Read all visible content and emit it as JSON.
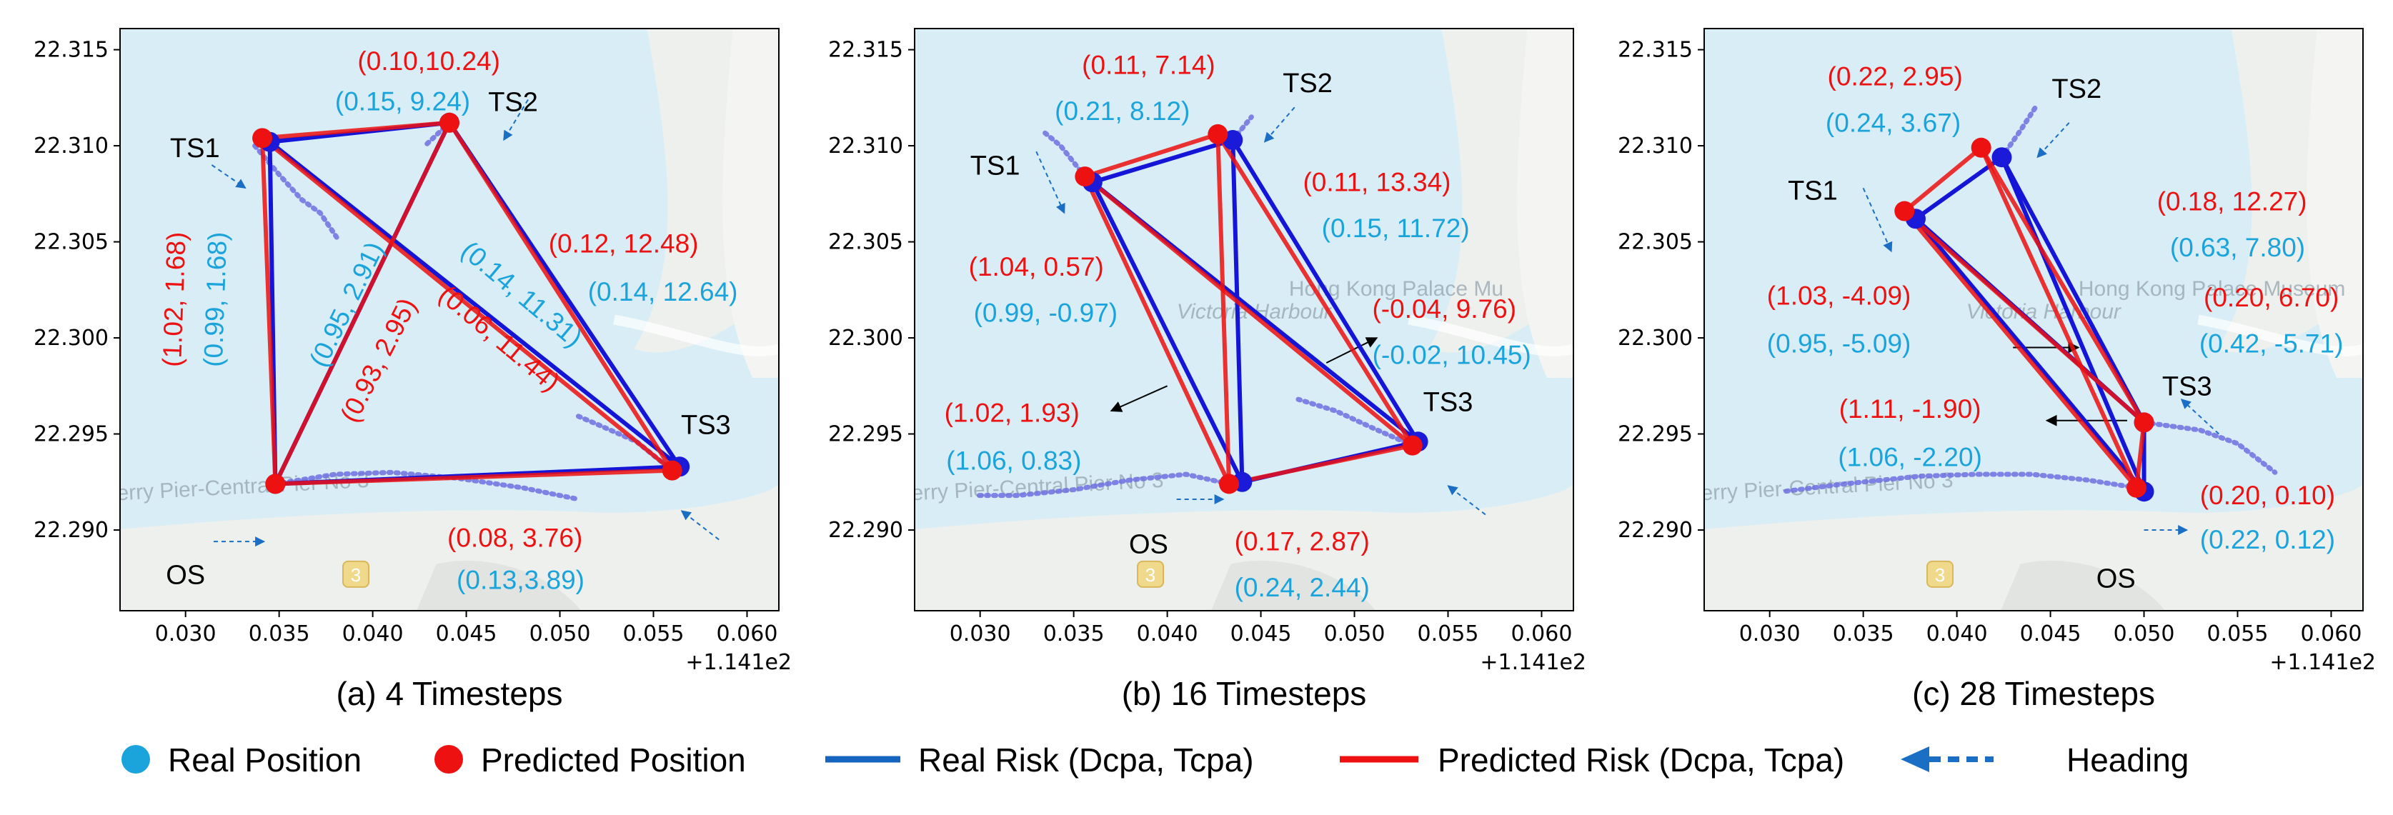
{
  "chart_data": [
    {
      "type": "scatter",
      "caption": "(a) 4 Timesteps",
      "x_offset_label": "+1.141e2",
      "x_ticks": [
        "0.030",
        "0.035",
        "0.040",
        "0.045",
        "0.050",
        "0.055",
        "0.060"
      ],
      "y_ticks": [
        "22.290",
        "22.295",
        "22.300",
        "22.305",
        "22.310",
        "22.315"
      ],
      "xlim": [
        0.0265,
        0.0617
      ],
      "ylim": [
        22.2858,
        22.3161
      ],
      "map_labels": [
        "erry Pier-Central Pier No 3",
        "3"
      ],
      "ships": [
        {
          "name": "TS1",
          "label": "TS1",
          "real": [
            0.0345,
            22.3102
          ],
          "pred": [
            0.0341,
            22.3104
          ],
          "heading_from": [
            0.0314,
            22.309
          ],
          "heading_to": [
            0.0332,
            22.3078
          ],
          "track": [
            [
              0.0337,
              22.31
            ],
            [
              0.035,
              22.3085
            ],
            [
              0.0362,
              22.3072
            ],
            [
              0.0372,
              22.3065
            ],
            [
              0.0381,
              22.3052
            ]
          ],
          "label_at": [
            0.0305,
            22.3094
          ]
        },
        {
          "name": "TS2",
          "label": "TS2",
          "real": [
            0.0441,
            22.3112
          ],
          "pred": [
            0.0441,
            22.3112
          ],
          "heading_from": [
            0.0483,
            22.3124
          ],
          "heading_to": [
            0.047,
            22.3103
          ],
          "track": [
            [
              0.0441,
              22.3112
            ],
            [
              0.0429,
              22.3101
            ]
          ],
          "label_at": [
            0.0475,
            22.3118
          ]
        },
        {
          "name": "TS3",
          "label": "TS3",
          "real": [
            0.0564,
            22.2933
          ],
          "pred": [
            0.056,
            22.2931
          ],
          "heading_from": [
            0.0585,
            22.2895
          ],
          "heading_to": [
            0.0565,
            22.291
          ],
          "track": [
            [
              0.056,
              22.2931
            ],
            [
              0.0541,
              22.2946
            ],
            [
              0.052,
              22.2955
            ],
            [
              0.0508,
              22.296
            ]
          ],
          "label_at": [
            0.0578,
            22.295
          ]
        },
        {
          "name": "OS",
          "label": "OS",
          "real": [
            0.0348,
            22.2924
          ],
          "pred": [
            0.0348,
            22.2924
          ],
          "heading_from": [
            0.0315,
            22.2894
          ],
          "heading_to": [
            0.0342,
            22.2894
          ],
          "track": [
            [
              0.0348,
              22.2924
            ],
            [
              0.038,
              22.2929
            ],
            [
              0.041,
              22.293
            ],
            [
              0.0445,
              22.2927
            ],
            [
              0.048,
              22.2922
            ],
            [
              0.051,
              22.2916
            ]
          ],
          "label_at": [
            0.03,
            22.2872
          ]
        }
      ],
      "pairs": [
        [
          "TS1",
          "TS2"
        ],
        [
          "TS1",
          "OS"
        ],
        [
          "TS1",
          "TS3"
        ],
        [
          "TS2",
          "OS"
        ],
        [
          "TS2",
          "TS3"
        ],
        [
          "OS",
          "TS3"
        ]
      ],
      "annotations": [
        {
          "text": "(0.10,10.24)",
          "color": "#ee1111",
          "at": [
            0.043,
            22.3143
          ],
          "rotate": 0
        },
        {
          "text": "(0.15, 9.24)",
          "color": "#1ba4dc",
          "at": [
            0.0416,
            22.3122
          ],
          "rotate": 0
        },
        {
          "text": "(0.12, 12.48)",
          "color": "#ee1111",
          "at": [
            0.0534,
            22.3048
          ],
          "rotate": 0
        },
        {
          "text": "(0.14, 12.64)",
          "color": "#1ba4dc",
          "at": [
            0.0555,
            22.3023
          ],
          "rotate": 0
        },
        {
          "text": "(1.02, 1.68)",
          "color": "#ee1111",
          "at": [
            0.0295,
            22.302
          ],
          "rotate": -88
        },
        {
          "text": "(0.99, 1.68)",
          "color": "#1ba4dc",
          "at": [
            0.0317,
            22.302
          ],
          "rotate": -88
        },
        {
          "text": "(0.95, 2.91)",
          "color": "#1ba4dc",
          "at": [
            0.0387,
            22.3017
          ],
          "rotate": -64
        },
        {
          "text": "(0.93, 2.95)",
          "color": "#ee1111",
          "at": [
            0.0404,
            22.2988
          ],
          "rotate": -63
        },
        {
          "text": "(0.14, 11.31)",
          "color": "#1ba4dc",
          "at": [
            0.0479,
            22.3022
          ],
          "rotate": 40
        },
        {
          "text": "(0.06, 11.44)",
          "color": "#ee1111",
          "at": [
            0.0467,
            22.2999
          ],
          "rotate": 40
        },
        {
          "text": "(0.08, 3.76)",
          "color": "#ee1111",
          "at": [
            0.0476,
            22.2895
          ],
          "rotate": 0
        },
        {
          "text": "(0.13,3.89)",
          "color": "#1ba4dc",
          "at": [
            0.0479,
            22.2873
          ],
          "rotate": 0
        }
      ]
    },
    {
      "type": "scatter",
      "caption": "(b) 16 Timesteps",
      "x_offset_label": "+1.141e2",
      "x_ticks": [
        "0.030",
        "0.035",
        "0.040",
        "0.045",
        "0.050",
        "0.055",
        "0.060"
      ],
      "y_ticks": [
        "22.290",
        "22.295",
        "22.300",
        "22.305",
        "22.310",
        "22.315"
      ],
      "xlim": [
        0.0265,
        0.0617
      ],
      "ylim": [
        22.2858,
        22.3161
      ],
      "map_labels": [
        "erry Pier-Central Pier No 3",
        "Victoria Harbour",
        "Hong Kong Palace Mu",
        "3"
      ],
      "ships": [
        {
          "name": "TS1",
          "label": "TS1",
          "real": [
            0.036,
            22.3081
          ],
          "pred": [
            0.0356,
            22.3084
          ],
          "heading_from": [
            0.033,
            22.3097
          ],
          "heading_to": [
            0.0345,
            22.3065
          ],
          "track": [
            [
              0.0356,
              22.3084
            ],
            [
              0.0343,
              22.31
            ],
            [
              0.0333,
              22.3108
            ]
          ],
          "label_at": [
            0.0308,
            22.3085
          ]
        },
        {
          "name": "TS2",
          "label": "TS2",
          "real": [
            0.0435,
            22.3103
          ],
          "pred": [
            0.0427,
            22.3106
          ],
          "heading_from": [
            0.0468,
            22.312
          ],
          "heading_to": [
            0.0452,
            22.3102
          ],
          "track": [
            [
              0.0435,
              22.3103
            ],
            [
              0.0445,
              22.3115
            ]
          ],
          "label_at": [
            0.0475,
            22.3128
          ]
        },
        {
          "name": "TS3",
          "label": "TS3",
          "real": [
            0.0534,
            22.2946
          ],
          "pred": [
            0.0531,
            22.2944
          ],
          "heading_from": [
            0.057,
            22.2908
          ],
          "heading_to": [
            0.055,
            22.2923
          ],
          "track": [
            [
              0.0531,
              22.2944
            ],
            [
              0.051,
              22.2953
            ],
            [
              0.049,
              22.2962
            ],
            [
              0.047,
              22.2968
            ]
          ],
          "label_at": [
            0.055,
            22.2962
          ]
        },
        {
          "name": "OS",
          "label": "OS",
          "real": [
            0.044,
            22.2925
          ],
          "pred": [
            0.0433,
            22.2924
          ],
          "heading_from": [
            0.0405,
            22.2916
          ],
          "heading_to": [
            0.043,
            22.2916
          ],
          "track": [
            [
              0.0433,
              22.2924
            ],
            [
              0.041,
              22.2929
            ],
            [
              0.038,
              22.2926
            ],
            [
              0.035,
              22.2921
            ],
            [
              0.032,
              22.2918
            ],
            [
              0.0299,
              22.2918
            ]
          ],
          "label_at": [
            0.039,
            22.2888
          ]
        }
      ],
      "pairs": [
        [
          "TS1",
          "TS2"
        ],
        [
          "TS1",
          "OS"
        ],
        [
          "TS1",
          "TS3"
        ],
        [
          "TS2",
          "OS"
        ],
        [
          "TS2",
          "TS3"
        ],
        [
          "OS",
          "TS3"
        ]
      ],
      "extra_arrows": [
        {
          "from": [
            0.04,
            22.2975
          ],
          "to": [
            0.037,
            22.2962
          ]
        },
        {
          "from": [
            0.0485,
            22.2987
          ],
          "to": [
            0.0512,
            22.3
          ]
        }
      ],
      "annotations": [
        {
          "text": "(0.11, 7.14)",
          "color": "#ee1111",
          "at": [
            0.039,
            22.3141
          ],
          "rotate": 0
        },
        {
          "text": "(0.21, 8.12)",
          "color": "#1ba4dc",
          "at": [
            0.0376,
            22.3117
          ],
          "rotate": 0
        },
        {
          "text": "(0.11, 13.34)",
          "color": "#ee1111",
          "at": [
            0.0512,
            22.308
          ],
          "rotate": 0
        },
        {
          "text": "(0.15, 11.72)",
          "color": "#1ba4dc",
          "at": [
            0.0522,
            22.3056
          ],
          "rotate": 0
        },
        {
          "text": "(1.04, 0.57)",
          "color": "#ee1111",
          "at": [
            0.033,
            22.3036
          ],
          "rotate": 0
        },
        {
          "text": "(0.99, -0.97)",
          "color": "#1ba4dc",
          "at": [
            0.0335,
            22.3012
          ],
          "rotate": 0
        },
        {
          "text": "(-0.04, 9.76)",
          "color": "#ee1111",
          "at": [
            0.0548,
            22.3014
          ],
          "rotate": 0
        },
        {
          "text": "(-0.02, 10.45)",
          "color": "#1ba4dc",
          "at": [
            0.0552,
            22.299
          ],
          "rotate": 0
        },
        {
          "text": "(1.02, 1.93)",
          "color": "#ee1111",
          "at": [
            0.0317,
            22.296
          ],
          "rotate": 0
        },
        {
          "text": "(1.06, 0.83)",
          "color": "#1ba4dc",
          "at": [
            0.0318,
            22.2935
          ],
          "rotate": 0
        },
        {
          "text": "(0.17, 2.87)",
          "color": "#ee1111",
          "at": [
            0.0472,
            22.2893
          ],
          "rotate": 0
        },
        {
          "text": "(0.24, 2.44)",
          "color": "#1ba4dc",
          "at": [
            0.0472,
            22.2869
          ],
          "rotate": 0
        }
      ]
    },
    {
      "type": "scatter",
      "caption": "(c) 28 Timesteps",
      "x_offset_label": "+1.141e2",
      "x_ticks": [
        "0.030",
        "0.035",
        "0.040",
        "0.045",
        "0.050",
        "0.055",
        "0.060"
      ],
      "y_ticks": [
        "22.290",
        "22.295",
        "22.300",
        "22.305",
        "22.310",
        "22.315"
      ],
      "xlim": [
        0.0265,
        0.0617
      ],
      "ylim": [
        22.2858,
        22.3161
      ],
      "map_labels": [
        "erry Pier-Central Pier No 3",
        "Victoria Harbour",
        "Hong Kong Palace Museum",
        "3"
      ],
      "ships": [
        {
          "name": "TS1",
          "label": "TS1",
          "real": [
            0.0378,
            22.3062
          ],
          "pred": [
            0.0372,
            22.3066
          ],
          "heading_from": [
            0.035,
            22.3078
          ],
          "heading_to": [
            0.0365,
            22.3045
          ],
          "track": [
            [
              0.0372,
              22.3066
            ]
          ],
          "label_at": [
            0.0323,
            22.3072
          ]
        },
        {
          "name": "TS2",
          "label": "TS2",
          "real": [
            0.0424,
            22.3094
          ],
          "pred": [
            0.0413,
            22.3099
          ],
          "heading_from": [
            0.046,
            22.3112
          ],
          "heading_to": [
            0.0443,
            22.3094
          ],
          "track": [
            [
              0.0424,
              22.3094
            ],
            [
              0.0434,
              22.3108
            ],
            [
              0.0442,
              22.312
            ]
          ],
          "label_at": [
            0.0464,
            22.3125
          ]
        },
        {
          "name": "TS3",
          "label": "TS3",
          "real": [
            0.05,
            22.2956
          ],
          "pred": [
            0.05,
            22.2956
          ],
          "heading_from": [
            0.054,
            22.295
          ],
          "heading_to": [
            0.052,
            22.2968
          ],
          "track": [
            [
              0.05,
              22.2956
            ],
            [
              0.053,
              22.2952
            ],
            [
              0.055,
              22.2945
            ],
            [
              0.057,
              22.293
            ]
          ],
          "label_at": [
            0.0523,
            22.297
          ]
        },
        {
          "name": "OS",
          "label": "OS",
          "real": [
            0.05,
            22.292
          ],
          "pred": [
            0.0496,
            22.2922
          ],
          "heading_from": [
            0.05,
            22.29
          ],
          "heading_to": [
            0.0523,
            22.29
          ],
          "track": [
            [
              0.0496,
              22.2922
            ],
            [
              0.047,
              22.2926
            ],
            [
              0.044,
              22.2929
            ],
            [
              0.041,
              22.2929
            ],
            [
              0.038,
              22.2928
            ],
            [
              0.034,
              22.2924
            ],
            [
              0.0307,
              22.292
            ]
          ],
          "label_at": [
            0.0485,
            22.287
          ]
        }
      ],
      "pairs": [
        [
          "TS1",
          "TS2"
        ],
        [
          "TS1",
          "OS"
        ],
        [
          "TS1",
          "TS3"
        ],
        [
          "TS2",
          "OS"
        ],
        [
          "TS2",
          "TS3"
        ],
        [
          "OS",
          "TS3"
        ]
      ],
      "extra_arrows": [
        {
          "from": [
            0.043,
            22.2995
          ],
          "to": [
            0.0465,
            22.2995
          ]
        },
        {
          "from": [
            0.0491,
            22.2957
          ],
          "to": [
            0.0448,
            22.2957
          ]
        }
      ],
      "annotations": [
        {
          "text": "(0.22, 2.95)",
          "color": "#ee1111",
          "at": [
            0.0367,
            22.3135
          ],
          "rotate": 0
        },
        {
          "text": "(0.24, 3.67)",
          "color": "#1ba4dc",
          "at": [
            0.0366,
            22.3111
          ],
          "rotate": 0
        },
        {
          "text": "(0.18, 12.27)",
          "color": "#ee1111",
          "at": [
            0.0547,
            22.307
          ],
          "rotate": 0
        },
        {
          "text": "(0.63, 7.80)",
          "color": "#1ba4dc",
          "at": [
            0.055,
            22.3046
          ],
          "rotate": 0
        },
        {
          "text": "(1.03, -4.09)",
          "color": "#ee1111",
          "at": [
            0.0337,
            22.3021
          ],
          "rotate": 0
        },
        {
          "text": "(0.95, -5.09)",
          "color": "#1ba4dc",
          "at": [
            0.0337,
            22.2996
          ],
          "rotate": 0
        },
        {
          "text": "(0.20, 6.70)",
          "color": "#ee1111",
          "at": [
            0.0568,
            22.302
          ],
          "rotate": 0
        },
        {
          "text": "(0.42, -5.71)",
          "color": "#1ba4dc",
          "at": [
            0.0568,
            22.2996
          ],
          "rotate": 0
        },
        {
          "text": "(1.11, -1.90)",
          "color": "#ee1111",
          "at": [
            0.0375,
            22.2962
          ],
          "rotate": 0
        },
        {
          "text": "(1.06, -2.20)",
          "color": "#1ba4dc",
          "at": [
            0.0375,
            22.2937
          ],
          "rotate": 0
        },
        {
          "text": "(0.20, 0.10)",
          "color": "#ee1111",
          "at": [
            0.0566,
            22.2917
          ],
          "rotate": 0
        },
        {
          "text": "(0.22, 0.12)",
          "color": "#1ba4dc",
          "at": [
            0.0566,
            22.2894
          ],
          "rotate": 0
        }
      ]
    }
  ],
  "legend": {
    "real_position": "Real Position",
    "predicted_position": "Predicted Position",
    "real_risk": "Real Risk (Dcpa, Tcpa)",
    "predicted_risk": "Predicted Risk (Dcpa, Tcpa)",
    "heading": "Heading"
  },
  "colors": {
    "real_point": "#1ba4dc",
    "real_line": "#1515d8",
    "predicted": "#ee1111",
    "heading": "#1a6fc4",
    "water": "#d8edf5",
    "land": "#eef0ee",
    "track": "#6f6fe0"
  }
}
